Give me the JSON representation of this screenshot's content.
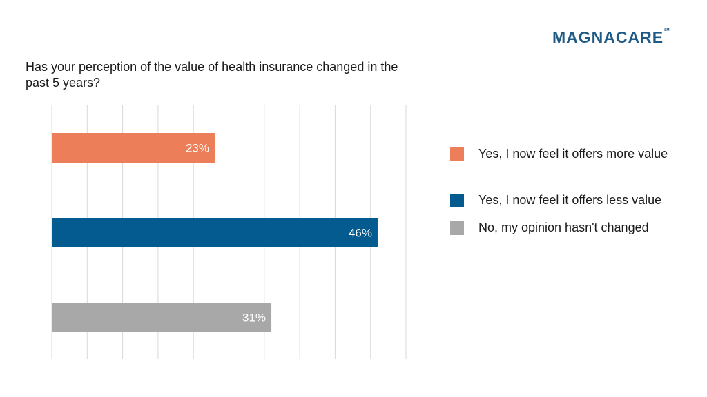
{
  "logo": {
    "text": "MAGNACARE",
    "mark": "SM",
    "color": "#1f5a86"
  },
  "chart_data": {
    "type": "bar",
    "orientation": "horizontal",
    "title": "Has your perception of the value of health insurance changed in the past 5 years?",
    "categories": [
      "Yes, I now feel it offers more value",
      "Yes, I now feel it offers less value",
      "No, my opinion hasn't changed"
    ],
    "values": [
      23,
      46,
      31
    ],
    "data_labels": [
      "23%",
      "46%",
      "31%"
    ],
    "colors": [
      "#ec7f5a",
      "#035b8f",
      "#a8a8a8"
    ],
    "xlim": [
      0,
      50
    ],
    "grid": true,
    "legend_placement": "right"
  },
  "legend": [
    {
      "label": "Yes, I now feel it offers more value",
      "color": "#ec7f5a"
    },
    {
      "label": "Yes, I now feel it offers less value",
      "color": "#035b8f"
    },
    {
      "label": "No, my opinion hasn't changed",
      "color": "#a8a8a8"
    }
  ]
}
